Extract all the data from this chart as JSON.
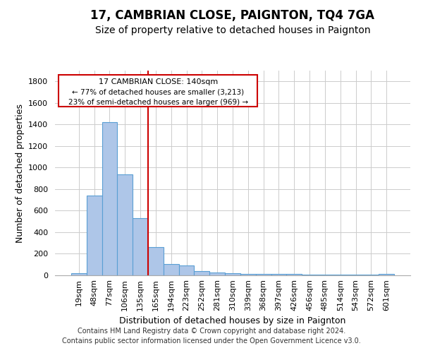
{
  "title": "17, CAMBRIAN CLOSE, PAIGNTON, TQ4 7GA",
  "subtitle": "Size of property relative to detached houses in Paignton",
  "xlabel": "Distribution of detached houses by size in Paignton",
  "ylabel": "Number of detached properties",
  "bar_labels": [
    "19sqm",
    "48sqm",
    "77sqm",
    "106sqm",
    "135sqm",
    "165sqm",
    "194sqm",
    "223sqm",
    "252sqm",
    "281sqm",
    "310sqm",
    "339sqm",
    "368sqm",
    "397sqm",
    "426sqm",
    "456sqm",
    "485sqm",
    "514sqm",
    "543sqm",
    "572sqm",
    "601sqm"
  ],
  "bar_values": [
    20,
    740,
    1420,
    940,
    530,
    265,
    105,
    90,
    40,
    28,
    22,
    12,
    12,
    12,
    12,
    5,
    5,
    5,
    5,
    5,
    12
  ],
  "bar_color": "#aec6e8",
  "bar_edgecolor": "#5a9fd4",
  "bar_linewidth": 0.8,
  "vline_x": 4.5,
  "vline_color": "#cc0000",
  "ylim": [
    0,
    1900
  ],
  "yticks": [
    0,
    200,
    400,
    600,
    800,
    1000,
    1200,
    1400,
    1600,
    1800
  ],
  "annotation_title": "17 CAMBRIAN CLOSE: 140sqm",
  "annotation_line1": "← 77% of detached houses are smaller (3,213)",
  "annotation_line2": "23% of semi-detached houses are larger (969) →",
  "footer_line1": "Contains HM Land Registry data © Crown copyright and database right 2024.",
  "footer_line2": "Contains public sector information licensed under the Open Government Licence v3.0.",
  "background_color": "#ffffff",
  "grid_color": "#cccccc",
  "title_fontsize": 12,
  "subtitle_fontsize": 10,
  "axis_label_fontsize": 9,
  "tick_fontsize": 8,
  "annotation_fontsize": 8,
  "footer_fontsize": 7
}
